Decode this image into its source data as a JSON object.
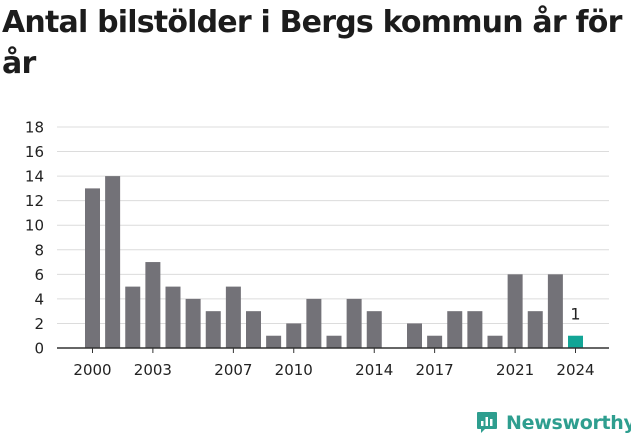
{
  "title": "Antal bilstölder i Bergs kommun år för år",
  "brand": "Newsworthy",
  "colors": {
    "bar": "#737278",
    "highlight": "#12a596",
    "grid": "#dcdcdc",
    "axis": "#333333",
    "brand": "#2e9e8f"
  },
  "chart_data": {
    "type": "bar",
    "title": "Antal bilstölder i Bergs kommun år för år",
    "xlabel": "",
    "ylabel": "",
    "categories": [
      "2000",
      "2001",
      "2002",
      "2003",
      "2004",
      "2005",
      "2006",
      "2007",
      "2008",
      "2009",
      "2010",
      "2011",
      "2012",
      "2013",
      "2014",
      "2015",
      "2016",
      "2017",
      "2018",
      "2019",
      "2020",
      "2021",
      "2022",
      "2023",
      "2024"
    ],
    "values": [
      13,
      14,
      5,
      7,
      5,
      4,
      3,
      5,
      3,
      1,
      2,
      4,
      1,
      4,
      3,
      0,
      2,
      1,
      3,
      3,
      1,
      6,
      3,
      6,
      1
    ],
    "x_tick_labels": [
      "2000",
      "2003",
      "2007",
      "2010",
      "2014",
      "2017",
      "2021",
      "2024"
    ],
    "y_ticks": [
      "0",
      "2",
      "4",
      "6",
      "8",
      "10",
      "12",
      "14",
      "16",
      "18"
    ],
    "ylim": [
      0,
      18
    ],
    "grid": "horizontal",
    "legend": "none",
    "highlighted_category": "2024",
    "data_labels": [
      {
        "category": "2024",
        "text": "1"
      }
    ]
  }
}
